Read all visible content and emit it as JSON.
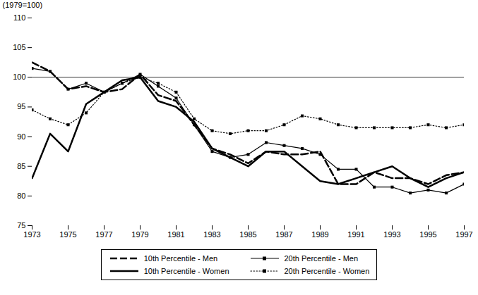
{
  "chart_data": {
    "type": "line",
    "x": [
      1973,
      1974,
      1975,
      1976,
      1977,
      1978,
      1979,
      1980,
      1981,
      1982,
      1983,
      1984,
      1985,
      1986,
      1987,
      1988,
      1989,
      1990,
      1991,
      1992,
      1993,
      1994,
      1995,
      1996,
      1997
    ],
    "series": [
      {
        "name": "10th Percentile - Men",
        "color": "black",
        "line_style": "dashed",
        "marker": "none",
        "values": [
          102.5,
          101.0,
          98.0,
          98.5,
          97.5,
          98.0,
          100.5,
          97.0,
          96.0,
          92.0,
          88.0,
          87.0,
          85.5,
          87.5,
          87.0,
          87.0,
          87.5,
          82.0,
          82.0,
          84.0,
          83.0,
          83.0,
          82.0,
          83.5,
          84.0
        ]
      },
      {
        "name": "20th Percentile - Men",
        "color": "black",
        "line_style": "solid",
        "marker": "square",
        "values": [
          101.5,
          101.0,
          98.0,
          99.0,
          97.5,
          99.0,
          100.5,
          98.5,
          96.5,
          92.0,
          87.5,
          86.5,
          87.0,
          89.0,
          88.5,
          88.0,
          87.0,
          84.5,
          84.5,
          81.5,
          81.5,
          80.5,
          81.0,
          80.5,
          82.0
        ]
      },
      {
        "name": "10th Percentile - Women",
        "color": "black",
        "line_style": "solid",
        "marker": "none",
        "values": [
          83.0,
          90.5,
          87.5,
          95.5,
          97.5,
          99.5,
          100.0,
          96.0,
          95.0,
          92.5,
          88.0,
          86.5,
          85.0,
          87.5,
          87.5,
          85.0,
          82.5,
          82.0,
          83.0,
          84.0,
          85.0,
          83.0,
          81.5,
          83.0,
          84.0
        ]
      },
      {
        "name": "20th Percentile - Women",
        "color": "black",
        "line_style": "dotted",
        "marker": "square",
        "values": [
          94.5,
          93.0,
          92.0,
          94.0,
          97.5,
          99.0,
          100.0,
          99.0,
          97.5,
          93.0,
          91.0,
          90.5,
          91.0,
          91.0,
          92.0,
          93.5,
          93.0,
          92.0,
          91.5,
          91.5,
          91.5,
          91.5,
          92.0,
          91.5,
          92.0
        ]
      }
    ],
    "xlim": [
      1973,
      1997
    ],
    "xticks": [
      1973,
      1975,
      1977,
      1979,
      1981,
      1983,
      1985,
      1987,
      1989,
      1991,
      1993,
      1995,
      1997
    ],
    "ylim": [
      75,
      110
    ],
    "yticks": [
      75,
      80,
      85,
      90,
      95,
      100,
      105,
      110
    ],
    "ylabel": "(1979=100)",
    "hline": 100,
    "grid": false,
    "legend": "bottom"
  }
}
